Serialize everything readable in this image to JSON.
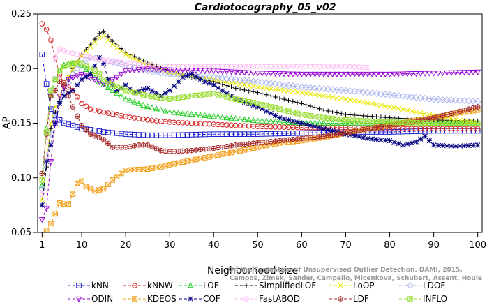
{
  "chart_data": {
    "type": "line",
    "title": "Cardiotocography_05_v02",
    "xlabel": "Neighborhood size",
    "ylabel": "AP",
    "xlim": [
      0,
      101
    ],
    "ylim": [
      0.05,
      0.25
    ],
    "xticks": [
      1,
      10,
      20,
      30,
      40,
      50,
      60,
      70,
      80,
      90,
      100
    ],
    "yticks": [
      0.05,
      0.1,
      0.15,
      0.2,
      0.25
    ],
    "ytick_labels": [
      "0.05",
      "0.10",
      "0.15",
      "0.20",
      "0.25"
    ],
    "grid": false,
    "legend_position": "bottom",
    "watermark": [
      "Campos, Zimek, Sander, Campello, Micenkova, Schubert, Assent, Houle",
      "On the Evaluation of Unsupervised Outlier Detection. DAMI, 2015."
    ],
    "series": [
      {
        "name": "kNN",
        "color": "#1a1acc",
        "marker": "square",
        "dash": "4,3",
        "points": [
          [
            1,
            0.213
          ],
          [
            2,
            0.186
          ],
          [
            3,
            0.163
          ],
          [
            4,
            0.157
          ],
          [
            5,
            0.153
          ],
          [
            6,
            0.15
          ],
          [
            8,
            0.148
          ],
          [
            10,
            0.145
          ],
          [
            12,
            0.144
          ],
          [
            15,
            0.142
          ],
          [
            20,
            0.14
          ],
          [
            25,
            0.139
          ],
          [
            30,
            0.139
          ],
          [
            40,
            0.14
          ],
          [
            50,
            0.14
          ],
          [
            60,
            0.141
          ],
          [
            70,
            0.142
          ],
          [
            80,
            0.142
          ],
          [
            90,
            0.143
          ],
          [
            100,
            0.143
          ]
        ]
      },
      {
        "name": "kNNW",
        "color": "#d62020",
        "marker": "circle",
        "dash": "4,3",
        "points": [
          [
            1,
            0.241
          ],
          [
            2,
            0.236
          ],
          [
            3,
            0.226
          ],
          [
            4,
            0.21
          ],
          [
            5,
            0.194
          ],
          [
            6,
            0.187
          ],
          [
            7,
            0.183
          ],
          [
            8,
            0.18
          ],
          [
            10,
            0.168
          ],
          [
            12,
            0.163
          ],
          [
            15,
            0.16
          ],
          [
            20,
            0.156
          ],
          [
            25,
            0.153
          ],
          [
            30,
            0.151
          ],
          [
            40,
            0.149
          ],
          [
            50,
            0.147
          ],
          [
            60,
            0.146
          ],
          [
            70,
            0.146
          ],
          [
            80,
            0.145
          ],
          [
            90,
            0.145
          ],
          [
            100,
            0.145
          ]
        ]
      },
      {
        "name": "LOF",
        "color": "#22cc22",
        "marker": "triangle-up",
        "dash": "4,3",
        "points": [
          [
            1,
            0.093
          ],
          [
            2,
            0.145
          ],
          [
            3,
            0.175
          ],
          [
            4,
            0.19
          ],
          [
            5,
            0.198
          ],
          [
            6,
            0.203
          ],
          [
            8,
            0.205
          ],
          [
            10,
            0.203
          ],
          [
            12,
            0.195
          ],
          [
            15,
            0.185
          ],
          [
            20,
            0.172
          ],
          [
            25,
            0.165
          ],
          [
            30,
            0.16
          ],
          [
            35,
            0.158
          ],
          [
            40,
            0.156
          ],
          [
            50,
            0.152
          ],
          [
            60,
            0.15
          ],
          [
            70,
            0.15
          ],
          [
            80,
            0.15
          ],
          [
            90,
            0.15
          ],
          [
            100,
            0.15
          ]
        ]
      },
      {
        "name": "SimplifiedLOF",
        "color": "#000000",
        "marker": "plus",
        "dash": "4,3",
        "points": [
          [
            1,
            0.075
          ],
          [
            2,
            0.11
          ],
          [
            3,
            0.145
          ],
          [
            4,
            0.16
          ],
          [
            5,
            0.17
          ],
          [
            6,
            0.18
          ],
          [
            7,
            0.19
          ],
          [
            8,
            0.2
          ],
          [
            10,
            0.213
          ],
          [
            12,
            0.222
          ],
          [
            14,
            0.232
          ],
          [
            15,
            0.234
          ],
          [
            17,
            0.225
          ],
          [
            20,
            0.215
          ],
          [
            25,
            0.205
          ],
          [
            30,
            0.198
          ],
          [
            35,
            0.192
          ],
          [
            40,
            0.188
          ],
          [
            45,
            0.182
          ],
          [
            50,
            0.178
          ],
          [
            55,
            0.173
          ],
          [
            60,
            0.168
          ],
          [
            65,
            0.162
          ],
          [
            70,
            0.158
          ],
          [
            80,
            0.155
          ],
          [
            90,
            0.153
          ],
          [
            100,
            0.152
          ]
        ]
      },
      {
        "name": "LoOP",
        "color": "#e8e800",
        "marker": "x",
        "dash": "4,3",
        "points": [
          [
            1,
            0.08
          ],
          [
            2,
            0.115
          ],
          [
            3,
            0.15
          ],
          [
            4,
            0.165
          ],
          [
            5,
            0.175
          ],
          [
            6,
            0.185
          ],
          [
            8,
            0.2
          ],
          [
            10,
            0.212
          ],
          [
            12,
            0.22
          ],
          [
            14,
            0.228
          ],
          [
            15,
            0.23
          ],
          [
            17,
            0.222
          ],
          [
            20,
            0.213
          ],
          [
            25,
            0.203
          ],
          [
            30,
            0.196
          ],
          [
            40,
            0.19
          ],
          [
            50,
            0.183
          ],
          [
            60,
            0.178
          ],
          [
            70,
            0.172
          ],
          [
            80,
            0.165
          ],
          [
            90,
            0.157
          ],
          [
            100,
            0.15
          ]
        ]
      },
      {
        "name": "LDOF",
        "color": "#aab4ee",
        "marker": "diamond",
        "dash": "4,3",
        "points": [
          [
            1,
            0.09
          ],
          [
            3,
            0.14
          ],
          [
            5,
            0.17
          ],
          [
            8,
            0.195
          ],
          [
            10,
            0.205
          ],
          [
            12,
            0.21
          ],
          [
            15,
            0.208
          ],
          [
            20,
            0.203
          ],
          [
            25,
            0.198
          ],
          [
            30,
            0.195
          ],
          [
            40,
            0.192
          ],
          [
            50,
            0.188
          ],
          [
            60,
            0.183
          ],
          [
            70,
            0.18
          ],
          [
            80,
            0.176
          ],
          [
            90,
            0.172
          ],
          [
            100,
            0.17
          ]
        ]
      },
      {
        "name": "ODIN",
        "color": "#9400d3",
        "marker": "triangle-down",
        "dash": "4,3",
        "points": [
          [
            1,
            0.062
          ],
          [
            2,
            0.072
          ],
          [
            3,
            0.115
          ],
          [
            4,
            0.15
          ],
          [
            5,
            0.175
          ],
          [
            7,
            0.19
          ],
          [
            10,
            0.195
          ],
          [
            13,
            0.19
          ],
          [
            15,
            0.186
          ],
          [
            18,
            0.192
          ],
          [
            20,
            0.198
          ],
          [
            25,
            0.2
          ],
          [
            30,
            0.199
          ],
          [
            40,
            0.198
          ],
          [
            50,
            0.196
          ],
          [
            60,
            0.195
          ],
          [
            70,
            0.195
          ],
          [
            80,
            0.195
          ],
          [
            90,
            0.196
          ],
          [
            100,
            0.197
          ]
        ]
      },
      {
        "name": "KDEOS",
        "color": "#f2a11d",
        "marker": "square-x",
        "dash": "4,3",
        "points": [
          [
            1,
            0.045
          ],
          [
            2,
            0.052
          ],
          [
            3,
            0.058
          ],
          [
            4,
            0.067
          ],
          [
            5,
            0.077
          ],
          [
            6,
            0.076
          ],
          [
            7,
            0.076
          ],
          [
            8,
            0.085
          ],
          [
            9,
            0.095
          ],
          [
            10,
            0.097
          ],
          [
            11,
            0.092
          ],
          [
            13,
            0.088
          ],
          [
            15,
            0.09
          ],
          [
            17,
            0.098
          ],
          [
            20,
            0.107
          ],
          [
            25,
            0.108
          ],
          [
            28,
            0.11
          ],
          [
            30,
            0.112
          ],
          [
            35,
            0.116
          ],
          [
            40,
            0.12
          ],
          [
            45,
            0.124
          ],
          [
            50,
            0.128
          ],
          [
            55,
            0.132
          ],
          [
            60,
            0.134
          ],
          [
            65,
            0.137
          ],
          [
            70,
            0.141
          ],
          [
            75,
            0.145
          ],
          [
            80,
            0.148
          ],
          [
            85,
            0.152
          ],
          [
            90,
            0.155
          ],
          [
            95,
            0.159
          ],
          [
            100,
            0.162
          ]
        ]
      },
      {
        "name": "COF",
        "color": "#000080",
        "marker": "star",
        "dash": "4,3",
        "points": [
          [
            1,
            0.075
          ],
          [
            2,
            0.115
          ],
          [
            3,
            0.13
          ],
          [
            4,
            0.15
          ],
          [
            5,
            0.168
          ],
          [
            6,
            0.175
          ],
          [
            8,
            0.18
          ],
          [
            10,
            0.19
          ],
          [
            12,
            0.195
          ],
          [
            14,
            0.21
          ],
          [
            15,
            0.205
          ],
          [
            16,
            0.19
          ],
          [
            18,
            0.18
          ],
          [
            20,
            0.185
          ],
          [
            22,
            0.178
          ],
          [
            25,
            0.182
          ],
          [
            28,
            0.175
          ],
          [
            30,
            0.18
          ],
          [
            33,
            0.192
          ],
          [
            35,
            0.195
          ],
          [
            38,
            0.188
          ],
          [
            40,
            0.185
          ],
          [
            45,
            0.172
          ],
          [
            50,
            0.165
          ],
          [
            55,
            0.155
          ],
          [
            60,
            0.15
          ],
          [
            65,
            0.145
          ],
          [
            70,
            0.14
          ],
          [
            75,
            0.136
          ],
          [
            80,
            0.134
          ],
          [
            83,
            0.13
          ],
          [
            86,
            0.133
          ],
          [
            88,
            0.138
          ],
          [
            90,
            0.13
          ],
          [
            95,
            0.129
          ],
          [
            100,
            0.13
          ]
        ]
      },
      {
        "name": "FastABOD",
        "color": "#ffb6f0",
        "marker": "circle",
        "dash": "4,3",
        "points": [
          [
            1,
            0.085
          ],
          [
            2,
            0.12
          ],
          [
            3,
            0.175
          ],
          [
            4,
            0.21
          ],
          [
            5,
            0.218
          ],
          [
            7,
            0.215
          ],
          [
            10,
            0.212
          ],
          [
            12,
            0.21
          ],
          [
            15,
            0.208
          ],
          [
            20,
            0.205
          ],
          [
            25,
            0.203
          ],
          [
            30,
            0.202
          ],
          [
            40,
            0.202
          ],
          [
            50,
            0.202
          ],
          [
            60,
            0.202
          ],
          [
            70,
            0.202
          ],
          [
            75,
            0.201
          ]
        ]
      },
      {
        "name": "LDF",
        "color": "#a52a2a",
        "marker": "circle-plus",
        "dash": "4,3",
        "points": [
          [
            1,
            0.104
          ],
          [
            2,
            0.14
          ],
          [
            3,
            0.175
          ],
          [
            4,
            0.18
          ],
          [
            5,
            0.188
          ],
          [
            6,
            0.185
          ],
          [
            7,
            0.175
          ],
          [
            8,
            0.165
          ],
          [
            10,
            0.148
          ],
          [
            12,
            0.14
          ],
          [
            15,
            0.135
          ],
          [
            17,
            0.128
          ],
          [
            20,
            0.128
          ],
          [
            23,
            0.13
          ],
          [
            25,
            0.13
          ],
          [
            28,
            0.125
          ],
          [
            30,
            0.124
          ],
          [
            35,
            0.125
          ],
          [
            40,
            0.127
          ],
          [
            45,
            0.13
          ],
          [
            50,
            0.132
          ],
          [
            55,
            0.134
          ],
          [
            60,
            0.136
          ],
          [
            65,
            0.138
          ],
          [
            70,
            0.141
          ],
          [
            75,
            0.145
          ],
          [
            80,
            0.148
          ],
          [
            85,
            0.151
          ],
          [
            90,
            0.155
          ],
          [
            95,
            0.16
          ],
          [
            100,
            0.165
          ]
        ]
      },
      {
        "name": "INFLO",
        "color": "#99dd33",
        "marker": "hourglass",
        "dash": "4,3",
        "points": [
          [
            1,
            0.098
          ],
          [
            2,
            0.142
          ],
          [
            3,
            0.18
          ],
          [
            4,
            0.19
          ],
          [
            5,
            0.198
          ],
          [
            6,
            0.202
          ],
          [
            8,
            0.205
          ],
          [
            10,
            0.205
          ],
          [
            12,
            0.2
          ],
          [
            14,
            0.195
          ],
          [
            15,
            0.19
          ],
          [
            17,
            0.185
          ],
          [
            20,
            0.18
          ],
          [
            25,
            0.175
          ],
          [
            30,
            0.172
          ],
          [
            35,
            0.175
          ],
          [
            40,
            0.177
          ],
          [
            45,
            0.172
          ],
          [
            50,
            0.168
          ],
          [
            55,
            0.163
          ],
          [
            60,
            0.158
          ],
          [
            65,
            0.155
          ],
          [
            70,
            0.153
          ],
          [
            80,
            0.151
          ],
          [
            90,
            0.15
          ],
          [
            100,
            0.15
          ]
        ]
      }
    ]
  }
}
